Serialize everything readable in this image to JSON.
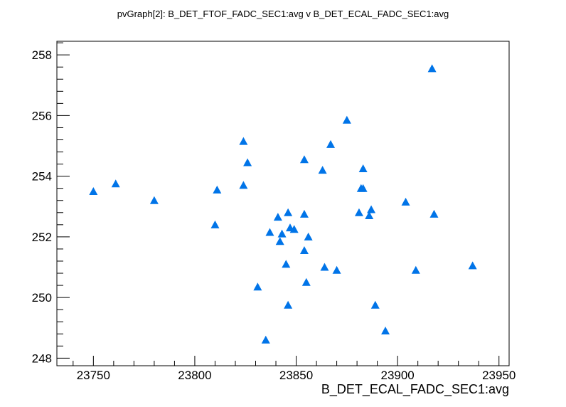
{
  "chart_data": {
    "type": "scatter",
    "title": "pvGraph[2]: B_DET_FTOF_FADC_SEC1:avg v B_DET_ECAL_FADC_SEC1:avg",
    "xlabel": "B_DET_ECAL_FADC_SEC1:avg",
    "ylabel": "",
    "xlim": [
      23732,
      23955
    ],
    "ylim": [
      247.75,
      258.45
    ],
    "x_ticks": [
      23750,
      23800,
      23850,
      23900,
      23950
    ],
    "x_tick_labels": [
      "23750",
      "23800",
      "23850",
      "23900",
      "23950"
    ],
    "y_ticks": [
      248,
      250,
      252,
      254,
      256,
      258
    ],
    "y_tick_labels": [
      "248",
      "250",
      "252",
      "254",
      "256",
      "258"
    ],
    "grid": false,
    "marker": "triangle-up",
    "marker_color": "#0074e8",
    "series": [
      {
        "points": [
          [
            23750,
            253.5
          ],
          [
            23761,
            253.75
          ],
          [
            23780,
            253.2
          ],
          [
            23810,
            252.4
          ],
          [
            23811,
            253.55
          ],
          [
            23824,
            255.15
          ],
          [
            23824,
            253.7
          ],
          [
            23826,
            254.45
          ],
          [
            23831,
            250.35
          ],
          [
            23835,
            248.6
          ],
          [
            23837,
            252.15
          ],
          [
            23841,
            252.65
          ],
          [
            23842,
            251.85
          ],
          [
            23843,
            252.1
          ],
          [
            23845,
            251.1
          ],
          [
            23846,
            252.8
          ],
          [
            23846,
            249.75
          ],
          [
            23847,
            252.3
          ],
          [
            23849,
            252.25
          ],
          [
            23854,
            254.55
          ],
          [
            23854,
            252.75
          ],
          [
            23854,
            251.55
          ],
          [
            23855,
            250.5
          ],
          [
            23856,
            252.0
          ],
          [
            23863,
            254.2
          ],
          [
            23864,
            251.0
          ],
          [
            23867,
            255.05
          ],
          [
            23870,
            250.9
          ],
          [
            23875,
            255.85
          ],
          [
            23881,
            252.8
          ],
          [
            23882,
            253.6
          ],
          [
            23883,
            254.25
          ],
          [
            23883,
            253.6
          ],
          [
            23886,
            252.7
          ],
          [
            23887,
            252.9
          ],
          [
            23889,
            249.75
          ],
          [
            23894,
            248.9
          ],
          [
            23904,
            253.15
          ],
          [
            23909,
            250.9
          ],
          [
            23917,
            257.55
          ],
          [
            23918,
            252.75
          ],
          [
            23937,
            251.05
          ]
        ]
      }
    ]
  }
}
